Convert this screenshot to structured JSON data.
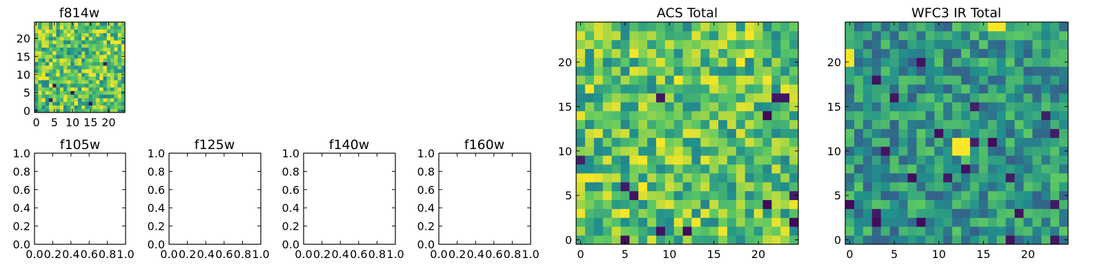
{
  "colormap": "viridis",
  "colormap_stops": [
    "#440154",
    "#3b528b",
    "#21918c",
    "#5ec962",
    "#fde725"
  ],
  "chart_data": [
    {
      "type": "heatmap",
      "title": "f814w",
      "grid_size": 25,
      "xlim": [
        -0.5,
        24.5
      ],
      "ylim": [
        -0.5,
        24.5
      ],
      "xticks": [
        0,
        5,
        10,
        15,
        20
      ],
      "yticks": [
        0,
        5,
        10,
        15,
        20
      ],
      "seed": 11,
      "value_range": [
        0.45,
        1.0
      ],
      "dark_cells": [
        [
          4,
          3
        ],
        [
          5,
          7
        ],
        [
          10,
          5
        ],
        [
          15,
          2
        ],
        [
          19,
          13
        ]
      ]
    },
    {
      "type": "scatter",
      "title": "f105w",
      "xlim": [
        0.0,
        1.0
      ],
      "ylim": [
        0.0,
        1.0
      ],
      "xticks": [
        "0.0",
        "0.2",
        "0.4",
        "0.6",
        "0.8",
        "1.0"
      ],
      "yticks": [
        "0.0",
        "0.2",
        "0.4",
        "0.6",
        "0.8",
        "1.0"
      ],
      "series": []
    },
    {
      "type": "scatter",
      "title": "f125w",
      "xlim": [
        0.0,
        1.0
      ],
      "ylim": [
        0.0,
        1.0
      ],
      "xticks": [
        "0.0",
        "0.2",
        "0.4",
        "0.6",
        "0.8",
        "1.0"
      ],
      "yticks": [
        "0.0",
        "0.2",
        "0.4",
        "0.6",
        "0.8",
        "1.0"
      ],
      "series": []
    },
    {
      "type": "scatter",
      "title": "f140w",
      "xlim": [
        0.0,
        1.0
      ],
      "ylim": [
        0.0,
        1.0
      ],
      "xticks": [
        "0.0",
        "0.2",
        "0.4",
        "0.6",
        "0.8",
        "1.0"
      ],
      "yticks": [
        "0.0",
        "0.2",
        "0.4",
        "0.6",
        "0.8",
        "1.0"
      ],
      "series": []
    },
    {
      "type": "scatter",
      "title": "f160w",
      "xlim": [
        0.0,
        1.0
      ],
      "ylim": [
        0.0,
        1.0
      ],
      "xticks": [
        "0.0",
        "0.2",
        "0.4",
        "0.6",
        "0.8",
        "1.0"
      ],
      "yticks": [
        "0.0",
        "0.2",
        "0.4",
        "0.6",
        "0.8",
        "1.0"
      ],
      "series": []
    },
    {
      "type": "heatmap",
      "title": "ACS Total",
      "grid_size": 25,
      "xlim": [
        -0.5,
        24.5
      ],
      "ylim": [
        -0.5,
        24.5
      ],
      "xticks": [
        0,
        5,
        10,
        15,
        20
      ],
      "yticks": [
        0,
        5,
        10,
        15,
        20
      ],
      "seed": 23,
      "value_range": [
        0.45,
        1.0
      ],
      "dark_cells": [
        [
          9,
          16
        ],
        [
          5,
          6
        ],
        [
          6,
          5
        ],
        [
          0,
          9
        ],
        [
          5,
          0
        ],
        [
          12,
          1
        ],
        [
          9,
          1
        ],
        [
          21,
          4
        ],
        [
          24,
          5
        ],
        [
          22,
          16
        ],
        [
          23,
          16
        ],
        [
          24,
          2
        ],
        [
          21,
          14
        ]
      ]
    },
    {
      "type": "heatmap",
      "title": "WFC3 IR Total",
      "grid_size": 25,
      "xlim": [
        -0.5,
        24.5
      ],
      "ylim": [
        -0.5,
        24.5
      ],
      "xticks": [
        0,
        5,
        10,
        15,
        20
      ],
      "yticks": [
        0,
        5,
        10,
        15,
        20
      ],
      "seed": 37,
      "value_range": [
        0.3,
        0.75
      ],
      "bright_cells": [
        [
          16,
          24
        ],
        [
          17,
          24
        ],
        [
          0,
          20
        ],
        [
          0,
          21
        ],
        [
          12,
          10
        ],
        [
          12,
          11
        ],
        [
          13,
          11
        ],
        [
          13,
          10
        ]
      ],
      "dark_cells": [
        [
          8,
          20
        ],
        [
          3,
          18
        ],
        [
          5,
          16
        ],
        [
          14,
          15
        ],
        [
          10,
          12
        ],
        [
          14,
          11
        ],
        [
          16,
          11
        ],
        [
          4,
          10
        ],
        [
          7,
          7
        ],
        [
          11,
          7
        ],
        [
          13,
          8
        ],
        [
          3,
          3
        ],
        [
          0,
          4
        ],
        [
          3,
          2
        ],
        [
          8,
          2
        ],
        [
          18,
          7
        ],
        [
          19,
          3
        ],
        [
          23,
          4
        ],
        [
          18,
          0
        ],
        [
          23,
          0
        ],
        [
          22,
          14
        ],
        [
          23,
          12
        ]
      ]
    }
  ]
}
